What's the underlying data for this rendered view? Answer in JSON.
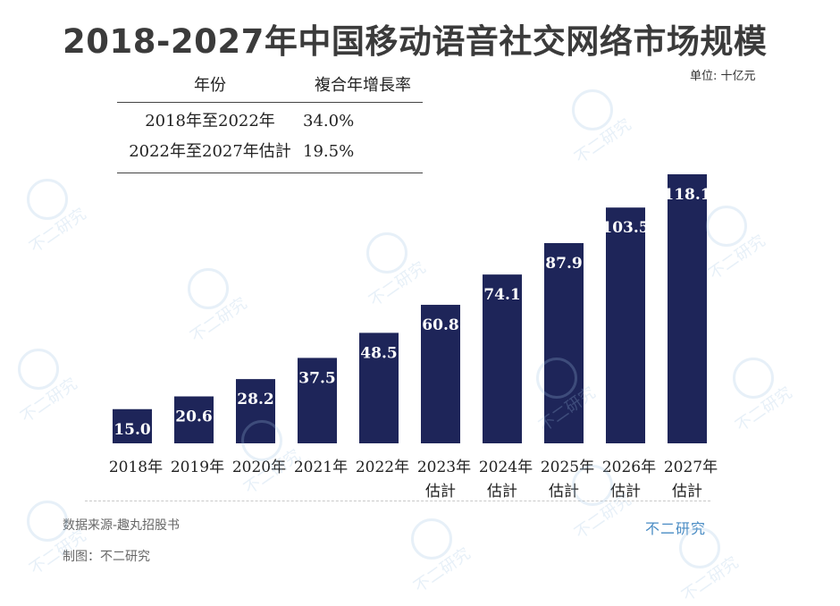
{
  "title": "2018-2027年中国移动语音社交网络市场规模",
  "unit": "单位: 十亿元",
  "cagr_table": {
    "headers": [
      "年份",
      "複合年增長率"
    ],
    "rows": [
      [
        "2018年至2022年",
        "34.0%"
      ],
      [
        "2022年至2027年估計",
        "19.5%"
      ]
    ]
  },
  "chart_data": {
    "type": "bar",
    "categories": [
      "2018年",
      "2019年",
      "2020年",
      "2021年",
      "2022年",
      "2023年\n估計",
      "2024年\n估計",
      "2025年\n估計",
      "2026年\n估計",
      "2027年\n估計"
    ],
    "values": [
      15.0,
      20.6,
      28.2,
      37.5,
      48.5,
      60.8,
      74.1,
      87.9,
      103.5,
      118.1
    ],
    "value_labels": [
      "15.0",
      "20.6",
      "28.2",
      "37.5",
      "48.5",
      "60.8",
      "74.1",
      "87.9",
      "103.5",
      "118.1"
    ],
    "ylim": [
      0,
      118.1
    ],
    "bar_color": "#1e2559",
    "label_color": "#ffffff",
    "grid": false
  },
  "source": "数据来源-趣丸招股书",
  "made_by": "制图：不二研究",
  "brand": "不二研究",
  "watermark_text": "不二研究"
}
